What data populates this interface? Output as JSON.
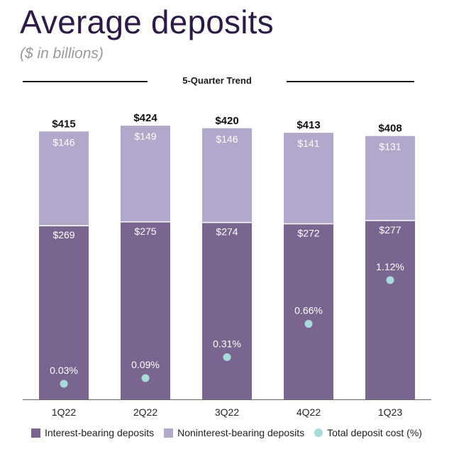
{
  "header": {
    "title": "Average deposits",
    "subtitle": "($ in billions)",
    "trend_label": "5-Quarter Trend"
  },
  "colors": {
    "interest_bearing": "#7a6591",
    "noninterest_bearing": "#b2a8cb",
    "deposit_cost": "#a8dad9",
    "title": "#2e1a47"
  },
  "chart_data": {
    "type": "bar",
    "stacked": true,
    "categories": [
      "1Q22",
      "2Q22",
      "3Q22",
      "4Q22",
      "1Q23"
    ],
    "series": [
      {
        "name": "Interest-bearing deposits",
        "values": [
          269,
          275,
          274,
          272,
          277
        ],
        "labels": [
          "$269",
          "$275",
          "$274",
          "$272",
          "$277"
        ]
      },
      {
        "name": "Noninterest-bearing deposits",
        "values": [
          146,
          149,
          146,
          141,
          131
        ],
        "labels": [
          "$146",
          "$149",
          "$146",
          "$141",
          "$131"
        ]
      }
    ],
    "totals": {
      "values": [
        415,
        424,
        420,
        413,
        408
      ],
      "labels": [
        "$415",
        "$424",
        "$420",
        "$413",
        "$408"
      ]
    },
    "overlay": {
      "name": "Total deposit cost (%)",
      "type": "scatter",
      "values": [
        0.03,
        0.09,
        0.31,
        0.66,
        1.12
      ],
      "labels": [
        "0.03%",
        "0.09%",
        "0.31%",
        "0.66%",
        "1.12%"
      ]
    },
    "legend": [
      "Interest-bearing deposits",
      "Noninterest-bearing deposits",
      "Total deposit cost (%)"
    ],
    "legend_position": "bottom",
    "grid": false
  }
}
